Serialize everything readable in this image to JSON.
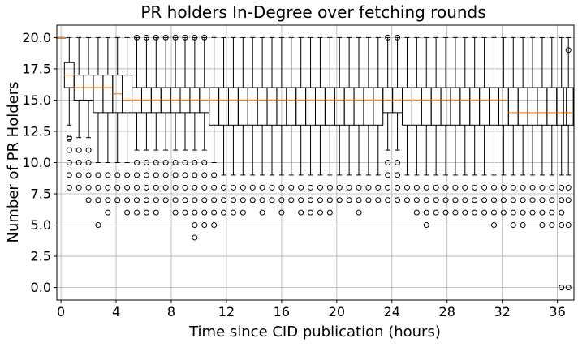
{
  "chart_data": {
    "type": "boxplot",
    "title": "PR holders In-Degree over fetching rounds",
    "xlabel": "Time since CID publication (hours)",
    "ylabel": "Number of PR Holders",
    "xlim": [
      -0.3,
      37.2
    ],
    "ylim": [
      -1.0,
      21.0
    ],
    "x_ticks": [
      {
        "value": 0,
        "label": "0"
      },
      {
        "value": 4,
        "label": "4"
      },
      {
        "value": 8,
        "label": "8"
      },
      {
        "value": 12,
        "label": "12"
      },
      {
        "value": 16,
        "label": "16"
      },
      {
        "value": 20,
        "label": "20"
      },
      {
        "value": 24,
        "label": "24"
      },
      {
        "value": 28,
        "label": "28"
      },
      {
        "value": 32,
        "label": "32"
      },
      {
        "value": 36,
        "label": "36"
      }
    ],
    "y_ticks": [
      {
        "value": 0.0,
        "label": "0.0"
      },
      {
        "value": 2.5,
        "label": "2.5"
      },
      {
        "value": 5.0,
        "label": "5.0"
      },
      {
        "value": 7.5,
        "label": "7.5"
      },
      {
        "value": 10.0,
        "label": "10.0"
      },
      {
        "value": 12.5,
        "label": "12.5"
      },
      {
        "value": 15.0,
        "label": "15.0"
      },
      {
        "value": 17.5,
        "label": "17.5"
      },
      {
        "value": 20.0,
        "label": "20.0"
      }
    ],
    "grid": true,
    "colors": {
      "box": "#000000",
      "median": "#ff7f0e",
      "grid": "#b0b0b0"
    },
    "boxes": [
      {
        "x": 0.0,
        "q1": 20,
        "median": 20,
        "q3": 20,
        "whisker_low": 20,
        "whisker_high": 20,
        "outliers": []
      },
      {
        "x": 0.6,
        "q1": 16,
        "median": 17,
        "q3": 18,
        "whisker_low": 13,
        "whisker_high": 20,
        "outliers": [
          12,
          11.9,
          11,
          10,
          9,
          8
        ]
      },
      {
        "x": 1.3,
        "q1": 15,
        "median": 16,
        "q3": 17,
        "whisker_low": 12,
        "whisker_high": 20,
        "outliers": [
          11,
          10,
          9,
          8
        ]
      },
      {
        "x": 2.0,
        "q1": 15,
        "median": 16,
        "q3": 17,
        "whisker_low": 12,
        "whisker_high": 20,
        "outliers": [
          11,
          10,
          9,
          8,
          7
        ]
      },
      {
        "x": 2.7,
        "q1": 14,
        "median": 16,
        "q3": 17,
        "whisker_low": 10,
        "whisker_high": 20,
        "outliers": [
          9,
          8,
          7,
          5
        ]
      },
      {
        "x": 3.4,
        "q1": 14,
        "median": 16,
        "q3": 17,
        "whisker_low": 10,
        "whisker_high": 20,
        "outliers": [
          9,
          8,
          7,
          6
        ]
      },
      {
        "x": 4.1,
        "q1": 14,
        "median": 15.5,
        "q3": 17,
        "whisker_low": 10,
        "whisker_high": 20,
        "outliers": [
          9,
          8,
          7
        ]
      },
      {
        "x": 4.8,
        "q1": 14,
        "median": 15,
        "q3": 17,
        "whisker_low": 10,
        "whisker_high": 20,
        "outliers": [
          9,
          8,
          7,
          6
        ]
      },
      {
        "x": 5.5,
        "q1": 14,
        "median": 15,
        "q3": 16,
        "whisker_low": 11,
        "whisker_high": 20,
        "outliers": [
          20,
          10,
          9,
          8,
          7,
          6
        ]
      },
      {
        "x": 6.2,
        "q1": 14,
        "median": 15,
        "q3": 16,
        "whisker_low": 11,
        "whisker_high": 20,
        "outliers": [
          20,
          10,
          9,
          8,
          7,
          6
        ]
      },
      {
        "x": 6.9,
        "q1": 14,
        "median": 15,
        "q3": 16,
        "whisker_low": 11,
        "whisker_high": 20,
        "outliers": [
          20,
          10,
          9,
          8,
          7,
          6
        ]
      },
      {
        "x": 7.6,
        "q1": 14,
        "median": 15,
        "q3": 16,
        "whisker_low": 11,
        "whisker_high": 20,
        "outliers": [
          20,
          10,
          9,
          8,
          7
        ]
      },
      {
        "x": 8.3,
        "q1": 14,
        "median": 15,
        "q3": 16,
        "whisker_low": 11,
        "whisker_high": 20,
        "outliers": [
          20,
          10,
          9,
          8,
          7,
          6
        ]
      },
      {
        "x": 9.0,
        "q1": 14,
        "median": 15,
        "q3": 16,
        "whisker_low": 11,
        "whisker_high": 20,
        "outliers": [
          20,
          10,
          9,
          8,
          7,
          6
        ]
      },
      {
        "x": 9.7,
        "q1": 14,
        "median": 15,
        "q3": 16,
        "whisker_low": 11,
        "whisker_high": 20,
        "outliers": [
          20,
          10,
          9,
          8,
          7,
          6,
          5,
          4
        ]
      },
      {
        "x": 10.4,
        "q1": 14,
        "median": 15,
        "q3": 16,
        "whisker_low": 11,
        "whisker_high": 20,
        "outliers": [
          20,
          10,
          9,
          8,
          7,
          6,
          5
        ]
      },
      {
        "x": 11.1,
        "q1": 13,
        "median": 15,
        "q3": 16,
        "whisker_low": 10,
        "whisker_high": 20,
        "outliers": [
          9,
          8,
          7,
          6,
          5
        ]
      },
      {
        "x": 11.8,
        "q1": 13,
        "median": 15,
        "q3": 16,
        "whisker_low": 9,
        "whisker_high": 20,
        "outliers": [
          8,
          7,
          6
        ]
      },
      {
        "x": 12.5,
        "q1": 13,
        "median": 15,
        "q3": 16,
        "whisker_low": 9,
        "whisker_high": 20,
        "outliers": [
          8,
          7,
          6
        ]
      },
      {
        "x": 13.2,
        "q1": 13,
        "median": 15,
        "q3": 16,
        "whisker_low": 9,
        "whisker_high": 20,
        "outliers": [
          8,
          7,
          6
        ]
      },
      {
        "x": 13.9,
        "q1": 13,
        "median": 15,
        "q3": 16,
        "whisker_low": 9,
        "whisker_high": 20,
        "outliers": [
          8,
          7
        ]
      },
      {
        "x": 14.6,
        "q1": 13,
        "median": 15,
        "q3": 16,
        "whisker_low": 9,
        "whisker_high": 20,
        "outliers": [
          8,
          7,
          6
        ]
      },
      {
        "x": 15.3,
        "q1": 13,
        "median": 15,
        "q3": 16,
        "whisker_low": 9,
        "whisker_high": 20,
        "outliers": [
          8,
          7
        ]
      },
      {
        "x": 16.0,
        "q1": 13,
        "median": 15,
        "q3": 16,
        "whisker_low": 9,
        "whisker_high": 20,
        "outliers": [
          8,
          7,
          6
        ]
      },
      {
        "x": 16.7,
        "q1": 13,
        "median": 15,
        "q3": 16,
        "whisker_low": 9,
        "whisker_high": 20,
        "outliers": [
          8,
          7
        ]
      },
      {
        "x": 17.4,
        "q1": 13,
        "median": 15,
        "q3": 16,
        "whisker_low": 9,
        "whisker_high": 20,
        "outliers": [
          8,
          7,
          6
        ]
      },
      {
        "x": 18.1,
        "q1": 13,
        "median": 15,
        "q3": 16,
        "whisker_low": 9,
        "whisker_high": 20,
        "outliers": [
          8,
          7,
          6
        ]
      },
      {
        "x": 18.8,
        "q1": 13,
        "median": 15,
        "q3": 16,
        "whisker_low": 9,
        "whisker_high": 20,
        "outliers": [
          8,
          7,
          6
        ]
      },
      {
        "x": 19.5,
        "q1": 13,
        "median": 15,
        "q3": 16,
        "whisker_low": 9,
        "whisker_high": 20,
        "outliers": [
          8,
          7,
          6
        ]
      },
      {
        "x": 20.2,
        "q1": 13,
        "median": 15,
        "q3": 16,
        "whisker_low": 9,
        "whisker_high": 20,
        "outliers": [
          8,
          7
        ]
      },
      {
        "x": 20.9,
        "q1": 13,
        "median": 15,
        "q3": 16,
        "whisker_low": 9,
        "whisker_high": 20,
        "outliers": [
          8,
          7
        ]
      },
      {
        "x": 21.6,
        "q1": 13,
        "median": 15,
        "q3": 16,
        "whisker_low": 9,
        "whisker_high": 20,
        "outliers": [
          8,
          7,
          6
        ]
      },
      {
        "x": 22.3,
        "q1": 13,
        "median": 15,
        "q3": 16,
        "whisker_low": 9,
        "whisker_high": 20,
        "outliers": [
          8,
          7
        ]
      },
      {
        "x": 23.0,
        "q1": 13,
        "median": 15,
        "q3": 16,
        "whisker_low": 9,
        "whisker_high": 20,
        "outliers": [
          8,
          7
        ]
      },
      {
        "x": 23.7,
        "q1": 14,
        "median": 15,
        "q3": 16,
        "whisker_low": 11,
        "whisker_high": 20,
        "outliers": [
          20,
          10,
          9,
          8,
          7
        ]
      },
      {
        "x": 24.4,
        "q1": 14,
        "median": 15,
        "q3": 16,
        "whisker_low": 11,
        "whisker_high": 20,
        "outliers": [
          20,
          10,
          9,
          8,
          7
        ]
      },
      {
        "x": 25.1,
        "q1": 13,
        "median": 15,
        "q3": 16,
        "whisker_low": 9,
        "whisker_high": 20,
        "outliers": [
          8,
          7
        ]
      },
      {
        "x": 25.8,
        "q1": 13,
        "median": 15,
        "q3": 16,
        "whisker_low": 9,
        "whisker_high": 20,
        "outliers": [
          8,
          7,
          6
        ]
      },
      {
        "x": 26.5,
        "q1": 13,
        "median": 15,
        "q3": 16,
        "whisker_low": 9,
        "whisker_high": 20,
        "outliers": [
          8,
          7,
          6,
          5
        ]
      },
      {
        "x": 27.2,
        "q1": 13,
        "median": 15,
        "q3": 16,
        "whisker_low": 9,
        "whisker_high": 20,
        "outliers": [
          8,
          7,
          6
        ]
      },
      {
        "x": 27.9,
        "q1": 13,
        "median": 15,
        "q3": 16,
        "whisker_low": 9,
        "whisker_high": 20,
        "outliers": [
          8,
          7,
          6
        ]
      },
      {
        "x": 28.6,
        "q1": 13,
        "median": 15,
        "q3": 16,
        "whisker_low": 9,
        "whisker_high": 20,
        "outliers": [
          8,
          7,
          6
        ]
      },
      {
        "x": 29.3,
        "q1": 13,
        "median": 15,
        "q3": 16,
        "whisker_low": 9,
        "whisker_high": 20,
        "outliers": [
          8,
          7,
          6
        ]
      },
      {
        "x": 30.0,
        "q1": 13,
        "median": 15,
        "q3": 16,
        "whisker_low": 9,
        "whisker_high": 20,
        "outliers": [
          8,
          7,
          6
        ]
      },
      {
        "x": 30.7,
        "q1": 13,
        "median": 15,
        "q3": 16,
        "whisker_low": 9,
        "whisker_high": 20,
        "outliers": [
          8,
          7,
          6
        ]
      },
      {
        "x": 31.4,
        "q1": 13,
        "median": 15,
        "q3": 16,
        "whisker_low": 9,
        "whisker_high": 20,
        "outliers": [
          8,
          7,
          6,
          5
        ]
      },
      {
        "x": 32.1,
        "q1": 13,
        "median": 15,
        "q3": 16,
        "whisker_low": 9,
        "whisker_high": 20,
        "outliers": [
          8,
          7,
          6
        ]
      },
      {
        "x": 32.8,
        "q1": 13,
        "median": 14,
        "q3": 16,
        "whisker_low": 9,
        "whisker_high": 20,
        "outliers": [
          8,
          7,
          6,
          5
        ]
      },
      {
        "x": 33.5,
        "q1": 13,
        "median": 14,
        "q3": 16,
        "whisker_low": 9,
        "whisker_high": 20,
        "outliers": [
          8,
          7,
          6,
          5
        ]
      },
      {
        "x": 34.2,
        "q1": 13,
        "median": 14,
        "q3": 16,
        "whisker_low": 9,
        "whisker_high": 20,
        "outliers": [
          8,
          7,
          6
        ]
      },
      {
        "x": 34.9,
        "q1": 13,
        "median": 14,
        "q3": 16,
        "whisker_low": 9,
        "whisker_high": 20,
        "outliers": [
          8,
          7,
          6,
          5
        ]
      },
      {
        "x": 35.6,
        "q1": 13,
        "median": 14,
        "q3": 16,
        "whisker_low": 9,
        "whisker_high": 20,
        "outliers": [
          8,
          7,
          6,
          5
        ]
      },
      {
        "x": 36.3,
        "q1": 13,
        "median": 14,
        "q3": 16,
        "whisker_low": 9,
        "whisker_high": 20,
        "outliers": [
          8,
          7,
          6,
          5,
          0
        ]
      },
      {
        "x": 36.8,
        "q1": 13,
        "median": 14,
        "q3": 16,
        "whisker_low": 9,
        "whisker_high": 20,
        "outliers": [
          19,
          8,
          7,
          5,
          0
        ]
      }
    ]
  }
}
